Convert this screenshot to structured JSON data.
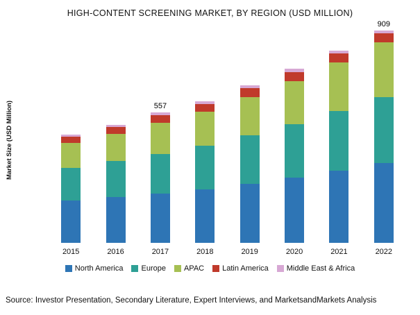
{
  "title": "HIGH-CONTENT SCREENING MARKET, BY REGION (USD MILLION)",
  "source_note": "Source: Investor Presentation, Secondary Literature, Expert Interviews, and MarketsandMarkets Analysis",
  "chart_data": {
    "type": "bar",
    "stacked": true,
    "title": "HIGH-CONTENT SCREENING MARKET, BY REGION (USD MILLION)",
    "xlabel": "",
    "ylabel": "Market Size (USD Million)",
    "ylim": [
      0,
      920
    ],
    "grid": false,
    "legend_position": "bottom",
    "categories": [
      "2015",
      "2016",
      "2017",
      "2018",
      "2019",
      "2020",
      "2021",
      "2022"
    ],
    "series": [
      {
        "name": "North America",
        "color": "#2E75B5",
        "values": [
          180,
          195,
          210,
          230,
          252,
          278,
          308,
          340
        ]
      },
      {
        "name": "Europe",
        "color": "#2EA095",
        "values": [
          142,
          154,
          170,
          185,
          207,
          230,
          255,
          282
        ]
      },
      {
        "name": "APAC",
        "color": "#A6C053",
        "values": [
          105,
          116,
          133,
          145,
          165,
          185,
          208,
          235
        ]
      },
      {
        "name": "Latin America",
        "color": "#C03A2B",
        "values": [
          28,
          30,
          33,
          35,
          37,
          38,
          38,
          38
        ]
      },
      {
        "name": "Middle East & Africa",
        "color": "#D7A8D4",
        "values": [
          9,
          10,
          11,
          12,
          13,
          13,
          14,
          14
        ]
      }
    ],
    "bar_labels": [
      "",
      "",
      "557",
      "",
      "",
      "",
      "",
      "909"
    ]
  }
}
